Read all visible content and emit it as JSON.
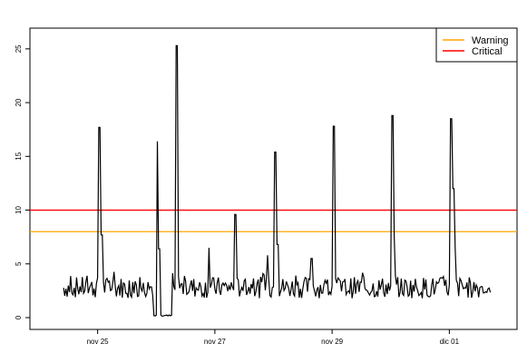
{
  "chart_data": {
    "type": "line",
    "title": "",
    "xlabel": "",
    "ylabel": "",
    "x_unit": "day",
    "xlim": [
      "2024-11-24",
      "2024-12-02"
    ],
    "ylim": [
      0,
      26
    ],
    "grid": false,
    "legend_position": "top-right",
    "x_ticks": [
      {
        "date": "2024-11-25",
        "label": "nov 25"
      },
      {
        "date": "2024-11-27",
        "label": "nov 27"
      },
      {
        "date": "2024-11-29",
        "label": "nov 29"
      },
      {
        "date": "2024-12-01",
        "label": "dic 01"
      }
    ],
    "y_ticks": [
      0,
      5,
      10,
      15,
      20,
      25
    ],
    "reference_lines": [
      {
        "name": "Warning",
        "y": 8,
        "color": "#ffa500"
      },
      {
        "name": "Critical",
        "y": 10,
        "color": "#ff0000"
      }
    ],
    "series": [
      {
        "color": "#000000",
        "x_start": "2024-11-24",
        "start_offset_days": 0.42,
        "step_days": 0.02,
        "baseline": 2.8,
        "noise": 1.0,
        "low_segment": {
          "from_days": 1.95,
          "to_days": 2.27,
          "value": 0.15
        },
        "peaks": [
          {
            "day": 1.03,
            "value": 17.7
          },
          {
            "day": 1.07,
            "value": 7.7
          },
          {
            "day": 2.02,
            "value": 16.4
          },
          {
            "day": 2.05,
            "value": 6.4
          },
          {
            "day": 2.35,
            "value": 25.3
          },
          {
            "day": 2.9,
            "value": 6.5
          },
          {
            "day": 3.35,
            "value": 9.6
          },
          {
            "day": 3.9,
            "value": 5.8
          },
          {
            "day": 4.03,
            "value": 15.4
          },
          {
            "day": 4.07,
            "value": 6.8
          },
          {
            "day": 4.65,
            "value": 5.5
          },
          {
            "day": 5.03,
            "value": 17.8
          },
          {
            "day": 6.03,
            "value": 18.8
          },
          {
            "day": 6.06,
            "value": 7.6
          },
          {
            "day": 7.03,
            "value": 18.5
          },
          {
            "day": 7.07,
            "value": 12.0
          },
          {
            "day": 7.1,
            "value": 6.5
          }
        ],
        "x_end_days": 7.7
      }
    ]
  },
  "legend": {
    "items": [
      {
        "label": "Warning",
        "color": "#ffa500"
      },
      {
        "label": "Critical",
        "color": "#ff0000"
      }
    ]
  }
}
